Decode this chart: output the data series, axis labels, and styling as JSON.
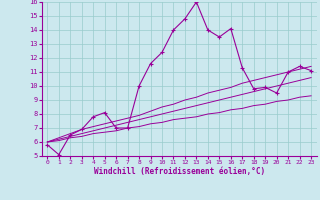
{
  "xlabel": "Windchill (Refroidissement éolien,°C)",
  "bg_color": "#cce8ee",
  "line_color": "#990099",
  "grid_color": "#99cccc",
  "xlim": [
    -0.5,
    23.5
  ],
  "ylim": [
    5,
    16
  ],
  "xticks": [
    0,
    1,
    2,
    3,
    4,
    5,
    6,
    7,
    8,
    9,
    10,
    11,
    12,
    13,
    14,
    15,
    16,
    17,
    18,
    19,
    20,
    21,
    22,
    23
  ],
  "yticks": [
    5,
    6,
    7,
    8,
    9,
    10,
    11,
    12,
    13,
    14,
    15,
    16
  ],
  "main_series": [
    5.8,
    5.1,
    6.5,
    6.9,
    7.8,
    8.1,
    7.0,
    7.0,
    10.0,
    11.6,
    12.4,
    14.0,
    14.8,
    16.0,
    14.0,
    13.5,
    14.1,
    11.3,
    9.8,
    9.9,
    9.5,
    11.0,
    11.4,
    11.1
  ],
  "linear_series": [
    [
      6.0,
      6.1,
      6.3,
      6.4,
      6.6,
      6.7,
      6.8,
      7.0,
      7.1,
      7.3,
      7.4,
      7.6,
      7.7,
      7.8,
      8.0,
      8.1,
      8.3,
      8.4,
      8.6,
      8.7,
      8.9,
      9.0,
      9.2,
      9.3
    ],
    [
      6.0,
      6.2,
      6.4,
      6.6,
      6.8,
      7.0,
      7.2,
      7.4,
      7.6,
      7.8,
      8.0,
      8.2,
      8.4,
      8.6,
      8.8,
      9.0,
      9.2,
      9.4,
      9.6,
      9.8,
      10.0,
      10.2,
      10.4,
      10.6
    ],
    [
      6.0,
      6.3,
      6.6,
      6.9,
      7.1,
      7.3,
      7.5,
      7.7,
      7.9,
      8.2,
      8.5,
      8.7,
      9.0,
      9.2,
      9.5,
      9.7,
      9.9,
      10.2,
      10.4,
      10.6,
      10.8,
      11.0,
      11.2,
      11.4
    ]
  ]
}
